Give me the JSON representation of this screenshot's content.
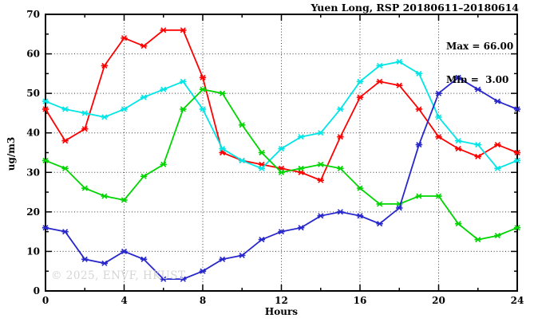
{
  "title": "Yuen Long, RSP 20180611–20180614",
  "watermark": "© 2025, ENVF, HKUST",
  "legend": {
    "max_label": "Max = 66.00",
    "min_label": "Min =  3.00"
  },
  "chart_data": {
    "type": "line",
    "title": "Yuen Long, RSP 20180611–20180614",
    "xlabel": "Hours",
    "ylabel": "ug/m3",
    "xlim": [
      0,
      24
    ],
    "ylim": [
      0,
      70
    ],
    "x_major_ticks": [
      0,
      4,
      8,
      12,
      16,
      20,
      24
    ],
    "x_minor_ticks": [
      2,
      6,
      10,
      14,
      18,
      22
    ],
    "y_major_ticks": [
      0,
      10,
      20,
      30,
      40,
      50,
      60,
      70
    ],
    "y_minor_ticks": [
      5,
      15,
      25,
      35,
      45,
      55,
      65
    ],
    "grid_x": [
      4,
      8,
      12,
      16,
      20
    ],
    "grid_y": [
      10,
      20,
      30,
      40,
      50,
      60
    ],
    "grid_style": "dotted",
    "legend_position": "top-right-inside",
    "annotations": [
      "Max = 66.00",
      "Min =  3.00"
    ],
    "x": [
      0,
      1,
      2,
      3,
      4,
      5,
      6,
      7,
      8,
      9,
      10,
      11,
      12,
      13,
      14,
      15,
      16,
      17,
      18,
      19,
      20,
      21,
      22,
      23,
      24
    ],
    "series": [
      {
        "name": "red",
        "color": "#ff0000",
        "values": [
          46,
          38,
          41,
          57,
          64,
          62,
          66,
          66,
          54,
          35,
          33,
          32,
          31,
          30,
          28,
          39,
          49,
          53,
          52,
          46,
          39,
          36,
          34,
          37,
          35
        ]
      },
      {
        "name": "cyan",
        "color": "#00e6e6",
        "values": [
          48,
          46,
          45,
          44,
          46,
          49,
          51,
          53,
          46,
          36,
          33,
          31,
          36,
          39,
          40,
          46,
          53,
          57,
          58,
          55,
          44,
          38,
          37,
          31,
          33
        ]
      },
      {
        "name": "green",
        "color": "#00d500",
        "values": [
          33,
          31,
          26,
          24,
          23,
          29,
          32,
          46,
          51,
          50,
          42,
          35,
          30,
          31,
          32,
          31,
          26,
          22,
          22,
          24,
          24,
          17,
          13,
          14,
          16
        ]
      },
      {
        "name": "blue",
        "color": "#2727cc",
        "values": [
          16,
          15,
          8,
          7,
          10,
          8,
          3,
          3,
          5,
          8,
          9,
          13,
          15,
          16,
          19,
          20,
          19,
          17,
          21,
          37,
          50,
          54,
          51,
          48,
          46
        ]
      }
    ],
    "stats": {
      "max": 66.0,
      "min": 3.0
    }
  }
}
